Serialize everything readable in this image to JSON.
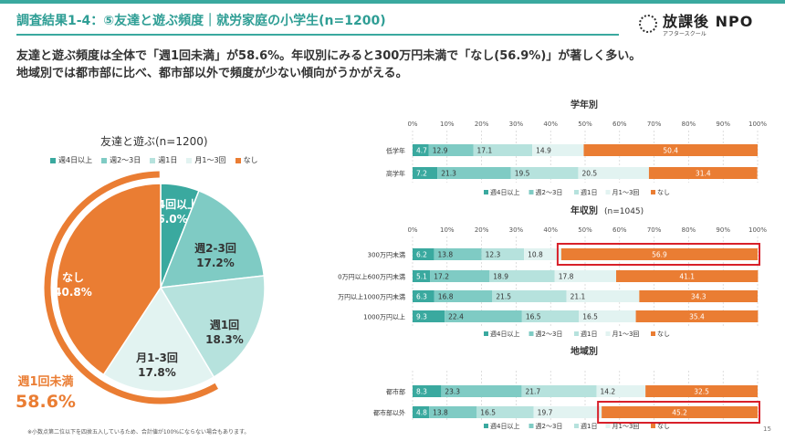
{
  "header": {
    "title": "調査結果1-4：⑤友達と遊ぶ頻度｜就労家庭の小学生(n=1200)",
    "logo_text": "放課後 NPO",
    "logo_sub": "アフタースクール"
  },
  "lead": {
    "line1": "友達と遊ぶ頻度は全体で「週1回未満」が58.6%。年収別にみると300万円未満で「なし(56.9%)」が著しく多い。",
    "line2": "地域別では都市部に比べ、都市部以外で頻度が少ない傾向がうかがえる。"
  },
  "colors": {
    "c1": "#3aa99f",
    "c2": "#7fcbc4",
    "c3": "#b6e2dd",
    "c4": "#e2f3f1",
    "c5": "#ea7d33",
    "highlight": "#d8202a"
  },
  "footnote": "※小数点第二位以下を四捨五入しているため、合計値が100%にならない場合もあります。",
  "page_number": "15",
  "chart_data": [
    {
      "type": "pie",
      "title": "友達と遊ぶ(n=1200)",
      "legend": [
        "週4日以上",
        "週2～3日",
        "週1日",
        "月1～3回",
        "なし"
      ],
      "slices": [
        {
          "label": "週4回以上",
          "value": 6.0,
          "display": "6.0%"
        },
        {
          "label": "週2-3回",
          "value": 17.2,
          "display": "17.2%"
        },
        {
          "label": "週1回",
          "value": 18.3,
          "display": "18.3%"
        },
        {
          "label": "月1-3回",
          "value": 17.8,
          "display": "17.8%"
        },
        {
          "label": "なし",
          "value": 40.8,
          "display": "40.8%"
        }
      ],
      "annotation": {
        "label": "週1回未満",
        "value": "58.6%"
      }
    },
    {
      "type": "bar",
      "stacked": true,
      "orientation": "horizontal",
      "title": "学年別",
      "xlim": [
        0,
        100
      ],
      "ticks": [
        "0%",
        "10%",
        "20%",
        "30%",
        "40%",
        "50%",
        "60%",
        "70%",
        "80%",
        "90%",
        "100%"
      ],
      "legend": [
        "週4日以上",
        "週2～3日",
        "週1日",
        "月1～3回",
        "なし"
      ],
      "categories": [
        "低学年",
        "高学年"
      ],
      "rows": [
        [
          4.7,
          12.9,
          17.1,
          14.9,
          50.4
        ],
        [
          7.2,
          21.3,
          19.5,
          20.5,
          31.4
        ]
      ],
      "highlight_row": null
    },
    {
      "type": "bar",
      "stacked": true,
      "orientation": "horizontal",
      "title": "年収別",
      "subtitle": "(n=1045)",
      "xlim": [
        0,
        100
      ],
      "ticks": [
        "0%",
        "10%",
        "20%",
        "30%",
        "40%",
        "50%",
        "60%",
        "70%",
        "80%",
        "90%",
        "100%"
      ],
      "legend": [
        "週4日以上",
        "週2～3日",
        "週1日",
        "月1～3回",
        "なし"
      ],
      "categories": [
        "300万円未満",
        "300万円以上600万円未満",
        "600万円以上1000万円未満",
        "1000万円以上"
      ],
      "rows": [
        [
          6.2,
          13.8,
          12.3,
          10.8,
          56.9
        ],
        [
          5.1,
          17.2,
          18.9,
          17.8,
          41.1
        ],
        [
          6.3,
          16.8,
          21.5,
          21.1,
          34.3
        ],
        [
          9.3,
          22.4,
          16.5,
          16.5,
          35.4
        ]
      ],
      "highlight_row": 0
    },
    {
      "type": "bar",
      "stacked": true,
      "orientation": "horizontal",
      "title": "地域別",
      "xlim": [
        0,
        100
      ],
      "ticks": [],
      "legend": [
        "週4日以上",
        "週2～3日",
        "週1日",
        "月1～3回",
        "なし"
      ],
      "categories": [
        "都市部",
        "都市部以外"
      ],
      "rows": [
        [
          8.3,
          23.3,
          21.7,
          14.2,
          32.5
        ],
        [
          4.8,
          13.8,
          16.5,
          19.7,
          45.2
        ]
      ],
      "highlight_row": 1
    }
  ]
}
